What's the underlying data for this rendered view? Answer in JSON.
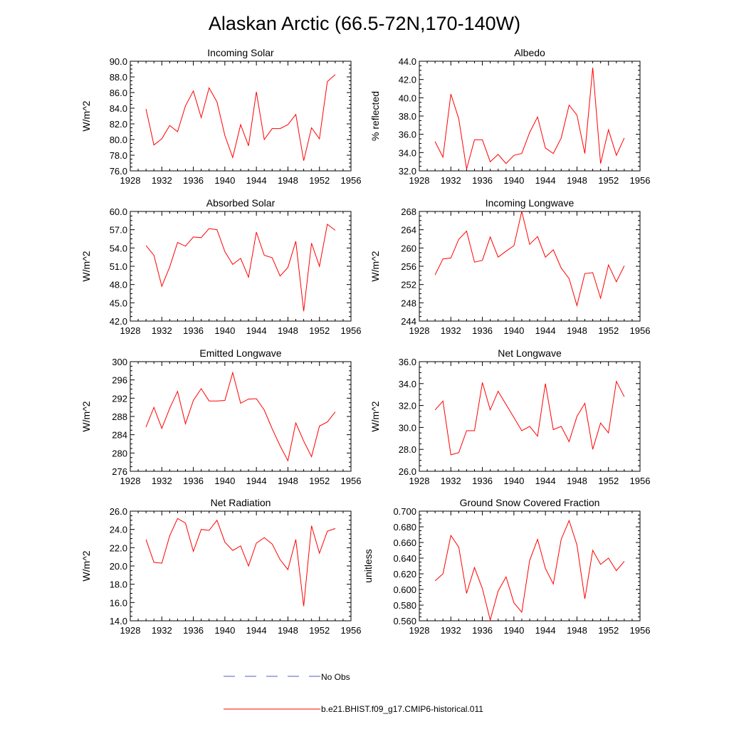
{
  "figure": {
    "title": "Alaskan Arctic (66.5-72N,170-140W)",
    "legend": [
      {
        "label": "No Obs",
        "color": "#4a5fd0",
        "style": "dashed"
      },
      {
        "label": "b.e21.BHIST.f09_g17.CMIP6-historical.011",
        "color": "#ff0000",
        "style": "solid"
      }
    ]
  },
  "chart_data": [
    {
      "type": "line",
      "title": "Incoming Solar",
      "xlabel": "",
      "ylabel": "W/m^2",
      "xlim": [
        1928,
        1956
      ],
      "xticks": [
        1928,
        1932,
        1936,
        1940,
        1944,
        1948,
        1952,
        1956
      ],
      "ylim": [
        76,
        90
      ],
      "yticks": [
        76,
        78,
        80,
        82,
        84,
        86,
        88,
        90
      ],
      "ytick_decimals": 1,
      "series": [
        {
          "color": "#ff0000",
          "x": [
            1930,
            1931,
            1932,
            1933,
            1934,
            1935,
            1936,
            1937,
            1938,
            1939,
            1940,
            1941,
            1942,
            1943,
            1944,
            1945,
            1946,
            1947,
            1948,
            1949,
            1950,
            1951,
            1952,
            1953,
            1954
          ],
          "y": [
            83.9,
            79.3,
            80.1,
            81.8,
            81.0,
            84.3,
            86.2,
            82.8,
            86.6,
            84.8,
            80.5,
            77.7,
            81.9,
            79.2,
            86.1,
            80.0,
            81.4,
            81.4,
            81.9,
            83.2,
            77.3,
            81.5,
            80.1,
            87.4,
            88.3
          ]
        }
      ]
    },
    {
      "type": "line",
      "title": "Albedo",
      "xlabel": "",
      "ylabel": "% reflected",
      "xlim": [
        1928,
        1956
      ],
      "xticks": [
        1928,
        1932,
        1936,
        1940,
        1944,
        1948,
        1952,
        1956
      ],
      "ylim": [
        32,
        44
      ],
      "yticks": [
        32,
        34,
        36,
        38,
        40,
        42,
        44
      ],
      "ytick_decimals": 1,
      "series": [
        {
          "color": "#ff0000",
          "x": [
            1930,
            1931,
            1932,
            1933,
            1934,
            1935,
            1936,
            1937,
            1938,
            1939,
            1940,
            1941,
            1942,
            1943,
            1944,
            1945,
            1946,
            1947,
            1948,
            1949,
            1950,
            1951,
            1952,
            1953,
            1954
          ],
          "y": [
            35.2,
            33.5,
            40.4,
            37.7,
            32.2,
            35.4,
            35.4,
            33.0,
            33.8,
            32.8,
            33.7,
            33.9,
            36.2,
            37.9,
            34.5,
            33.9,
            35.6,
            39.2,
            38.1,
            33.9,
            43.3,
            32.8,
            36.5,
            33.7,
            35.6
          ]
        }
      ]
    },
    {
      "type": "line",
      "title": "Absorbed Solar",
      "xlabel": "",
      "ylabel": "W/m^2",
      "xlim": [
        1928,
        1956
      ],
      "xticks": [
        1928,
        1932,
        1936,
        1940,
        1944,
        1948,
        1952,
        1956
      ],
      "ylim": [
        42,
        60
      ],
      "yticks": [
        42,
        45,
        48,
        51,
        54,
        57,
        60
      ],
      "ytick_decimals": 1,
      "series": [
        {
          "color": "#ff0000",
          "x": [
            1930,
            1931,
            1932,
            1933,
            1934,
            1935,
            1936,
            1937,
            1938,
            1939,
            1940,
            1941,
            1942,
            1943,
            1944,
            1945,
            1946,
            1947,
            1948,
            1949,
            1950,
            1951,
            1952,
            1953,
            1954
          ],
          "y": [
            54.4,
            52.8,
            47.7,
            50.9,
            54.9,
            54.3,
            55.8,
            55.7,
            57.2,
            57.0,
            53.4,
            51.3,
            52.3,
            49.2,
            56.6,
            52.8,
            52.4,
            49.4,
            50.8,
            55.1,
            43.6,
            54.8,
            51.0,
            57.9,
            56.9
          ]
        }
      ]
    },
    {
      "type": "line",
      "title": "Incoming Longwave",
      "xlabel": "",
      "ylabel": "W/m^2",
      "xlim": [
        1928,
        1956
      ],
      "xticks": [
        1928,
        1932,
        1936,
        1940,
        1944,
        1948,
        1952,
        1956
      ],
      "ylim": [
        244,
        268
      ],
      "yticks": [
        244,
        248,
        252,
        256,
        260,
        264,
        268
      ],
      "ytick_decimals": 0,
      "series": [
        {
          "color": "#ff0000",
          "x": [
            1930,
            1931,
            1932,
            1933,
            1934,
            1935,
            1936,
            1937,
            1938,
            1939,
            1940,
            1941,
            1942,
            1943,
            1944,
            1945,
            1946,
            1947,
            1948,
            1949,
            1950,
            1951,
            1952,
            1953,
            1954
          ],
          "y": [
            254.1,
            257.6,
            257.8,
            261.9,
            263.7,
            256.9,
            257.3,
            262.4,
            258.0,
            259.3,
            260.5,
            268.0,
            260.8,
            262.5,
            258.0,
            259.6,
            255.6,
            253.3,
            247.4,
            254.4,
            254.6,
            249.0,
            256.3,
            252.6,
            256.1
          ]
        }
      ]
    },
    {
      "type": "line",
      "title": "Emitted Longwave",
      "xlabel": "",
      "ylabel": "W/m^2",
      "xlim": [
        1928,
        1956
      ],
      "xticks": [
        1928,
        1932,
        1936,
        1940,
        1944,
        1948,
        1952,
        1956
      ],
      "ylim": [
        276,
        300
      ],
      "yticks": [
        276,
        280,
        284,
        288,
        292,
        296,
        300
      ],
      "ytick_decimals": 0,
      "series": [
        {
          "color": "#ff0000",
          "x": [
            1930,
            1931,
            1932,
            1933,
            1934,
            1935,
            1936,
            1937,
            1938,
            1939,
            1940,
            1941,
            1942,
            1943,
            1944,
            1945,
            1946,
            1947,
            1948,
            1949,
            1950,
            1951,
            1952,
            1953,
            1954
          ],
          "y": [
            285.7,
            290.0,
            285.4,
            289.8,
            293.5,
            286.4,
            291.5,
            294.1,
            291.4,
            291.4,
            291.5,
            297.6,
            290.9,
            291.8,
            291.9,
            289.4,
            285.3,
            281.6,
            278.3,
            286.6,
            282.6,
            279.2,
            285.9,
            286.8,
            289.0
          ]
        }
      ]
    },
    {
      "type": "line",
      "title": "Net Longwave",
      "xlabel": "",
      "ylabel": "W/m^2",
      "xlim": [
        1928,
        1956
      ],
      "xticks": [
        1928,
        1932,
        1936,
        1940,
        1944,
        1948,
        1952,
        1956
      ],
      "ylim": [
        26,
        36
      ],
      "yticks": [
        26,
        28,
        30,
        32,
        34,
        36
      ],
      "ytick_decimals": 1,
      "series": [
        {
          "color": "#ff0000",
          "x": [
            1930,
            1931,
            1932,
            1933,
            1934,
            1935,
            1936,
            1937,
            1938,
            1939,
            1940,
            1941,
            1942,
            1943,
            1944,
            1945,
            1946,
            1947,
            1948,
            1949,
            1950,
            1951,
            1952,
            1953,
            1954
          ],
          "y": [
            31.6,
            32.4,
            27.5,
            27.7,
            29.7,
            29.7,
            34.1,
            31.6,
            33.3,
            32.1,
            30.9,
            29.7,
            30.1,
            29.2,
            34.0,
            29.8,
            30.1,
            28.7,
            31.0,
            32.2,
            28.0,
            30.4,
            29.5,
            34.2,
            32.8
          ]
        }
      ]
    },
    {
      "type": "line",
      "title": "Net Radiation",
      "xlabel": "",
      "ylabel": "W/m^2",
      "xlim": [
        1928,
        1956
      ],
      "xticks": [
        1928,
        1932,
        1936,
        1940,
        1944,
        1948,
        1952,
        1956
      ],
      "ylim": [
        14,
        26
      ],
      "yticks": [
        14,
        16,
        18,
        20,
        22,
        24,
        26
      ],
      "ytick_decimals": 1,
      "series": [
        {
          "color": "#ff0000",
          "x": [
            1930,
            1931,
            1932,
            1933,
            1934,
            1935,
            1936,
            1937,
            1938,
            1939,
            1940,
            1941,
            1942,
            1943,
            1944,
            1945,
            1946,
            1947,
            1948,
            1949,
            1950,
            1951,
            1952,
            1953,
            1954
          ],
          "y": [
            22.9,
            20.4,
            20.3,
            23.3,
            25.2,
            24.7,
            21.6,
            24.0,
            23.9,
            25.0,
            22.6,
            21.7,
            22.2,
            20.0,
            22.5,
            23.1,
            22.4,
            20.7,
            19.6,
            22.9,
            15.6,
            24.4,
            21.4,
            23.8,
            24.1
          ]
        }
      ]
    },
    {
      "type": "line",
      "title": "Ground Snow Covered Fraction",
      "xlabel": "",
      "ylabel": "unitless",
      "xlim": [
        1928,
        1956
      ],
      "xticks": [
        1928,
        1932,
        1936,
        1940,
        1944,
        1948,
        1952,
        1956
      ],
      "ylim": [
        0.56,
        0.7
      ],
      "yticks": [
        0.56,
        0.58,
        0.6,
        0.62,
        0.64,
        0.66,
        0.68,
        0.7
      ],
      "ytick_decimals": 3,
      "series": [
        {
          "color": "#ff0000",
          "x": [
            1930,
            1931,
            1932,
            1933,
            1934,
            1935,
            1936,
            1937,
            1938,
            1939,
            1940,
            1941,
            1942,
            1943,
            1944,
            1945,
            1946,
            1947,
            1948,
            1949,
            1950,
            1951,
            1952,
            1953,
            1954
          ],
          "y": [
            0.611,
            0.62,
            0.669,
            0.654,
            0.595,
            0.628,
            0.601,
            0.561,
            0.598,
            0.616,
            0.583,
            0.571,
            0.637,
            0.664,
            0.627,
            0.607,
            0.664,
            0.688,
            0.657,
            0.588,
            0.65,
            0.632,
            0.64,
            0.624,
            0.636
          ]
        }
      ]
    }
  ]
}
